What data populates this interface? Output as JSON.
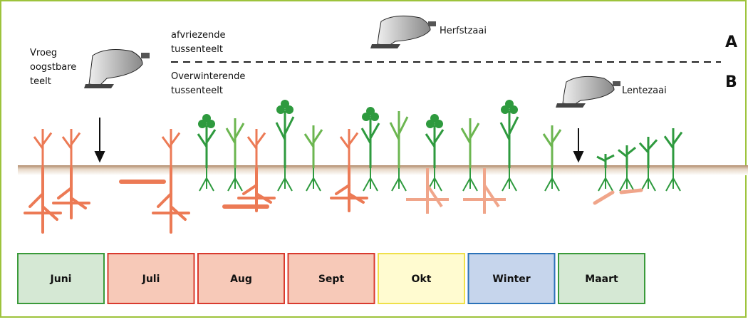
{
  "labels": {
    "early_crop": [
      "Vroeg",
      "oogstbare",
      "teelt"
    ],
    "frost_cover": [
      "afvriezende",
      "tussenteelt"
    ],
    "winter_cover": [
      "Overwinterende",
      "tussenteelt"
    ],
    "autumn_sowing": "Herfstzaai",
    "spring_sowing": "Lentezaai",
    "row_a": "A",
    "row_b": "B"
  },
  "months": [
    "Juni",
    "Juli",
    "Aug",
    "Sept",
    "Okt",
    "Winter",
    "Maart"
  ]
}
